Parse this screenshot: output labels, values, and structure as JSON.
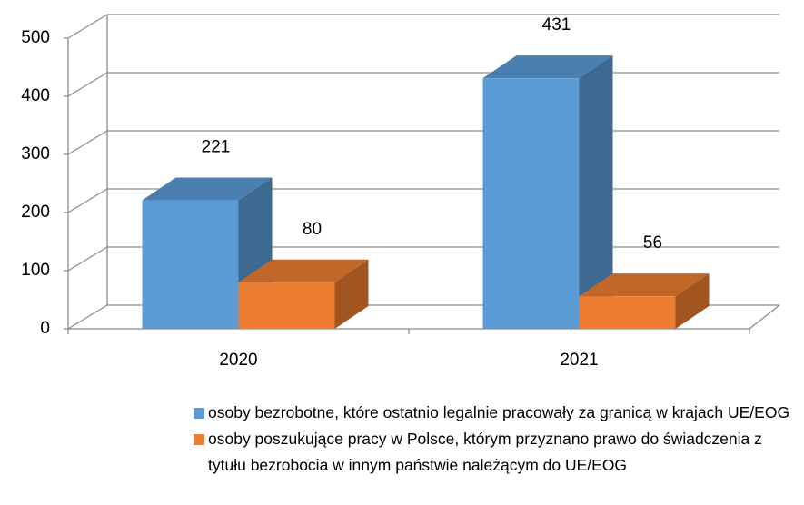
{
  "chart_data": {
    "type": "bar3d",
    "categories": [
      "2020",
      "2021"
    ],
    "series": [
      {
        "name": "osoby bezrobotne, które ostatnio legalnie pracowały za granicą w krajach UE/EOG",
        "color": "#5b9bd5",
        "values": [
          221,
          431
        ]
      },
      {
        "name": "osoby poszukujące pracy w Polsce, którym przyznano prawo do świadczenia z tytułu bezrobocia w innym państwie należącym do UE/EOG",
        "color": "#ed7d31",
        "values": [
          80,
          56
        ]
      }
    ],
    "ylim": [
      0,
      500
    ],
    "yticks": [
      0,
      100,
      200,
      300,
      400,
      500
    ],
    "grid": true,
    "legend": "bottom"
  }
}
